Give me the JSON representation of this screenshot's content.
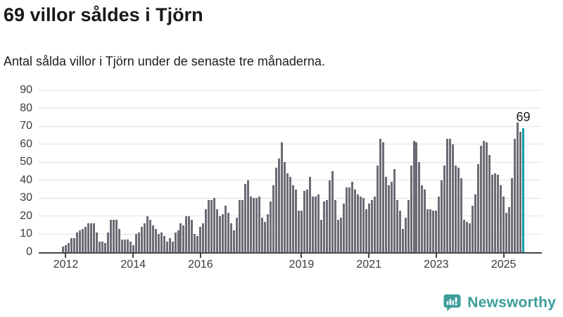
{
  "header": {
    "title": "69 villor såldes i Tjörn",
    "subtitle": "Antal sålda villor i Tjörn under de senaste tre månaderna."
  },
  "chart_data": {
    "type": "bar",
    "title": "69 villor såldes i Tjörn",
    "subtitle": "Antal sålda villor i Tjörn under de senaste tre månaderna.",
    "xlabel": "",
    "ylabel": "",
    "ylim": [
      0,
      90
    ],
    "yticks": [
      0,
      10,
      20,
      30,
      40,
      50,
      60,
      70,
      80,
      90
    ],
    "xtick_years": [
      "2012",
      "2014",
      "2016",
      "2019",
      "2021",
      "2023",
      "2025"
    ],
    "grid": true,
    "legend": "none",
    "start_month": "2011-12",
    "frequency": "monthly-rolling-3-month-total",
    "values": [
      3,
      4,
      5,
      8,
      8,
      11,
      12,
      13,
      14,
      16,
      16,
      16,
      11,
      6,
      6,
      5,
      11,
      18,
      18,
      18,
      13,
      7,
      7,
      7,
      6,
      4,
      10,
      11,
      14,
      16,
      20,
      18,
      15,
      13,
      10,
      11,
      9,
      6,
      8,
      6,
      11,
      12,
      16,
      15,
      20,
      20,
      18,
      10,
      9,
      14,
      16,
      24,
      29,
      29,
      30,
      24,
      20,
      21,
      26,
      22,
      16,
      12,
      19,
      29,
      29,
      38,
      40,
      31,
      30,
      30,
      31,
      19,
      17,
      21,
      28,
      37,
      47,
      52,
      61,
      50,
      44,
      42,
      37,
      35,
      23,
      23,
      34,
      35,
      42,
      31,
      31,
      32,
      18,
      28,
      29,
      40,
      45,
      29,
      18,
      19,
      27,
      36,
      36,
      39,
      35,
      32,
      31,
      30,
      24,
      27,
      29,
      31,
      48,
      63,
      61,
      42,
      37,
      39,
      46,
      29,
      23,
      13,
      19,
      29,
      48,
      62,
      61,
      50,
      37,
      35,
      24,
      24,
      23,
      23,
      31,
      40,
      48,
      63,
      63,
      60,
      48,
      47,
      41,
      18,
      17,
      16,
      26,
      32,
      49,
      59,
      62,
      61,
      54,
      43,
      44,
      43,
      37,
      31,
      22,
      25,
      41,
      63,
      72,
      67,
      69
    ],
    "highlight_index": 164,
    "highlight_value": 69,
    "highlight_label": "69",
    "bar_color": "#6c6b75",
    "highlight_color": "#11a0a3",
    "axis_color": "#474747",
    "gridline_color": "#e2e2e2"
  },
  "footer": {
    "brand": "Newsworthy",
    "brand_color": "#3d9e9b"
  }
}
